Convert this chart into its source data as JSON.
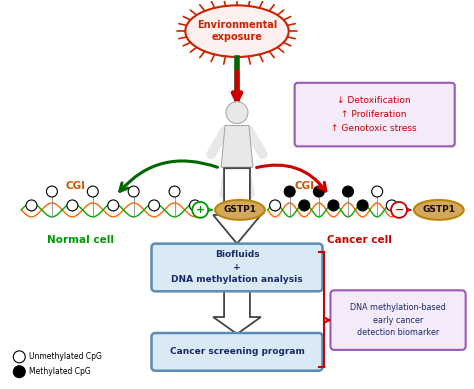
{
  "bg_color": "#ffffff",
  "env_exposure_text": "Environmental\nexposure",
  "effects_box_text": "↓ Detoxification\n↑ Proliferation\n↑ Genotoxic stress",
  "effects_box_color": "#9b59b6",
  "effects_box_fill": "#f5eafa",
  "normal_cell_label": "Normal cell",
  "cancer_cell_label": "Cancer cell",
  "cgi_label": "CGI",
  "biofluids_box_text": "Biofluids\n+\nDNA methylation analysis",
  "cancer_screening_text": "Cancer screening program",
  "dna_biomarker_text": "DNA methylation-based\nearly cancer\ndetection biomarker",
  "box_fill_color": "#daeaf5",
  "box_border_color": "#5a8db5",
  "biomarker_fill": "#f5eafa",
  "biomarker_border": "#9b59b6",
  "red_color": "#cc0000",
  "dark_red": "#990000",
  "green_color": "#006600",
  "legend_unmethyl": "Unmethylated CpG",
  "legend_methyl": "Methylated CpG",
  "gstp1_fill": "#d4a85a",
  "gstp1_edge": "#b8860b"
}
